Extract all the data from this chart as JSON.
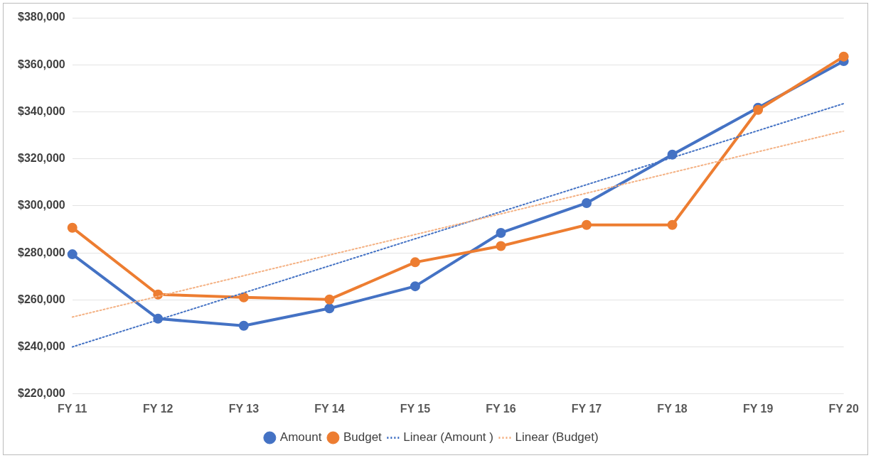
{
  "chart_data": {
    "type": "line",
    "categories": [
      "FY 11",
      "FY 12",
      "FY 13",
      "FY 14",
      "FY 15",
      "FY 16",
      "FY 17",
      "FY 18",
      "FY 19",
      "FY 20"
    ],
    "series": [
      {
        "name": "Amount",
        "color": "#4472c4",
        "values": [
          279400,
          252000,
          249000,
          256400,
          265800,
          288500,
          301200,
          321800,
          341700,
          361600
        ],
        "marker": "circle",
        "line_style": "solid"
      },
      {
        "name": "Budget",
        "color": "#ed7d31",
        "values": [
          290700,
          262300,
          261100,
          260200,
          276000,
          282900,
          291900,
          291900,
          340800,
          363500
        ],
        "marker": "circle",
        "line_style": "solid"
      },
      {
        "name": "Linear (Amount )",
        "color": "#4472c4",
        "values": [
          240000,
          251500,
          263000,
          274500,
          286000,
          297500,
          309000,
          320500,
          332000,
          343500
        ],
        "marker": "none",
        "line_style": "dotted"
      },
      {
        "name": "Linear (Budget)",
        "color": "#f4b183",
        "values": [
          252700,
          261500,
          270300,
          279100,
          287800,
          296600,
          305400,
          314200,
          323000,
          331800
        ],
        "marker": "none",
        "line_style": "dotted"
      }
    ],
    "ylim": [
      220000,
      380000
    ],
    "yticks": [
      {
        "value": 220000,
        "label": "$220,000"
      },
      {
        "value": 240000,
        "label": "$240,000"
      },
      {
        "value": 260000,
        "label": "$260,000"
      },
      {
        "value": 280000,
        "label": "$280,000"
      },
      {
        "value": 300000,
        "label": "$300,000"
      },
      {
        "value": 320000,
        "label": "$320,000"
      },
      {
        "value": 340000,
        "label": "$340,000"
      },
      {
        "value": 360000,
        "label": "$360,000"
      },
      {
        "value": 380000,
        "label": "$380,000"
      }
    ],
    "grid": "y",
    "legend": "bottom"
  }
}
